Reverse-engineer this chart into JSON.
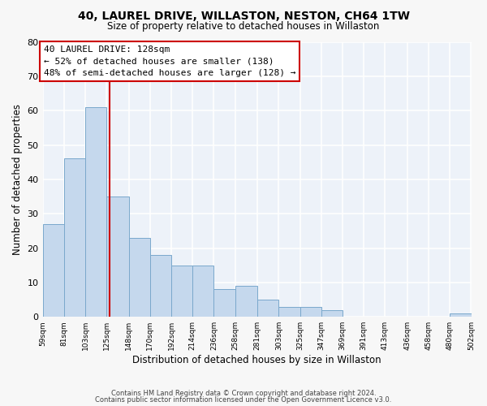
{
  "title": "40, LAUREL DRIVE, WILLASTON, NESTON, CH64 1TW",
  "subtitle": "Size of property relative to detached houses in Willaston",
  "xlabel": "Distribution of detached houses by size in Willaston",
  "ylabel": "Number of detached properties",
  "bar_color": "#c5d8ed",
  "bar_edge_color": "#7aa8cc",
  "background_color": "#edf2f9",
  "grid_color": "#ffffff",
  "fig_background": "#f7f7f7",
  "bins": [
    59,
    81,
    103,
    125,
    148,
    170,
    192,
    214,
    236,
    258,
    281,
    303,
    325,
    347,
    369,
    391,
    413,
    436,
    458,
    480,
    502
  ],
  "values": [
    27,
    46,
    61,
    35,
    23,
    18,
    15,
    15,
    8,
    9,
    5,
    3,
    3,
    2,
    0,
    0,
    0,
    0,
    0,
    1
  ],
  "property_size": 128,
  "annotation_title": "40 LAUREL DRIVE: 128sqm",
  "annotation_line1": "← 52% of detached houses are smaller (138)",
  "annotation_line2": "48% of semi-detached houses are larger (128) →",
  "vline_color": "#cc0000",
  "ylim": [
    0,
    80
  ],
  "yticks": [
    0,
    10,
    20,
    30,
    40,
    50,
    60,
    70,
    80
  ],
  "footer1": "Contains HM Land Registry data © Crown copyright and database right 2024.",
  "footer2": "Contains public sector information licensed under the Open Government Licence v3.0."
}
